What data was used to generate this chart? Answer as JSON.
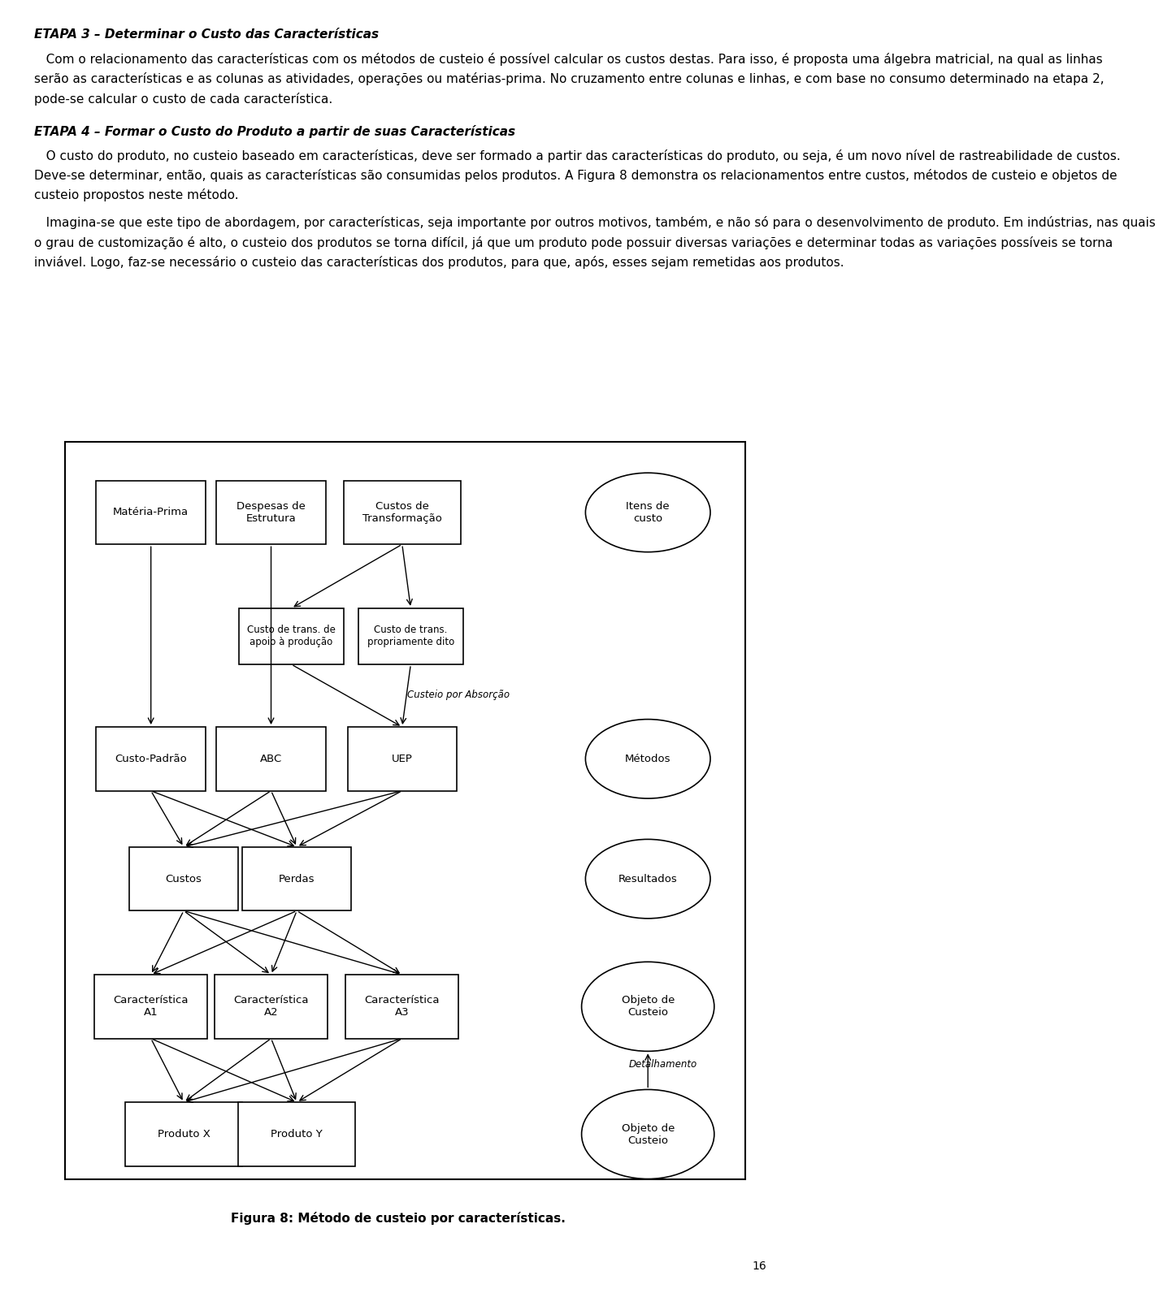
{
  "background_color": "#ffffff",
  "text_color": "#000000",
  "fig_width": 9.6,
  "fig_height": 15.72,
  "caption": "Figura 8: Método de custeio por características.",
  "page_number": "16",
  "title1": "ETAPA 3 – Determinar o Custo das Características",
  "body1_lines": [
    "   Com o relacionamento das características com os métodos de custeio é possível calcular os custos destas. Para isso, é proposta uma álgebra matricial, na qual as linhas",
    "serão as características e as colunas as atividades, operações ou matérias-prima. No cruzamento entre colunas e linhas, e com base no consumo determinado na etapa 2,",
    "pode-se calcular o custo de cada característica."
  ],
  "title2": "ETAPA 4 – Formar o Custo do Produto a partir de suas Características",
  "body2_lines": [
    "   O custo do produto, no custeio baseado em características, deve ser formado a partir das características do produto, ou seja, é um novo nível de rastreabilidade de custos.",
    "Deve-se determinar, então, quais as características são consumidas pelos produtos. A Figura 8 demonstra os relacionamentos entre custos, métodos de custeio e objetos de",
    "custeio propostos neste método."
  ],
  "body3_lines": [
    "   Imagina-se que este tipo de abordagem, por características, seja importante por outros motivos, também, e não só para o desenvolvimento de produto. Em indústrias, nas quais",
    "o grau de customização é alto, o custeio dos produtos se torna difícil, já que um produto pode possuir diversas variações e determinar todas as variações possíveis se torna",
    "inviável. Logo, faz-se necessário o custeio das características dos produtos, para que, após, esses sejam remetidas aos produtos."
  ]
}
